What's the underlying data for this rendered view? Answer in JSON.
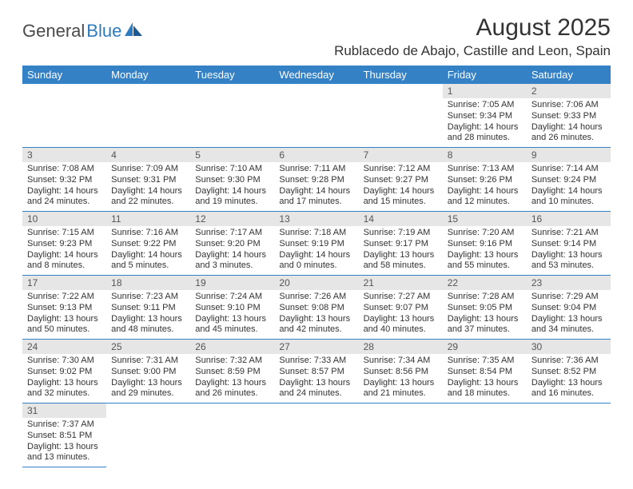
{
  "brand": {
    "part1": "General",
    "part2": "Blue"
  },
  "title": "August 2025",
  "location": "Rublacedo de Abajo, Castille and Leon, Spain",
  "colors": {
    "header_bg": "#3481c6",
    "header_text": "#ffffff",
    "daynum_bg": "#e6e6e6",
    "border": "#3481c6",
    "brand_gray": "#4a4a4a",
    "brand_blue": "#2f7bbf"
  },
  "weekdays": [
    "Sunday",
    "Monday",
    "Tuesday",
    "Wednesday",
    "Thursday",
    "Friday",
    "Saturday"
  ],
  "weeks": [
    [
      null,
      null,
      null,
      null,
      null,
      {
        "n": "1",
        "sunrise": "Sunrise: 7:05 AM",
        "sunset": "Sunset: 9:34 PM",
        "day1": "Daylight: 14 hours",
        "day2": "and 28 minutes."
      },
      {
        "n": "2",
        "sunrise": "Sunrise: 7:06 AM",
        "sunset": "Sunset: 9:33 PM",
        "day1": "Daylight: 14 hours",
        "day2": "and 26 minutes."
      }
    ],
    [
      {
        "n": "3",
        "sunrise": "Sunrise: 7:08 AM",
        "sunset": "Sunset: 9:32 PM",
        "day1": "Daylight: 14 hours",
        "day2": "and 24 minutes."
      },
      {
        "n": "4",
        "sunrise": "Sunrise: 7:09 AM",
        "sunset": "Sunset: 9:31 PM",
        "day1": "Daylight: 14 hours",
        "day2": "and 22 minutes."
      },
      {
        "n": "5",
        "sunrise": "Sunrise: 7:10 AM",
        "sunset": "Sunset: 9:30 PM",
        "day1": "Daylight: 14 hours",
        "day2": "and 19 minutes."
      },
      {
        "n": "6",
        "sunrise": "Sunrise: 7:11 AM",
        "sunset": "Sunset: 9:28 PM",
        "day1": "Daylight: 14 hours",
        "day2": "and 17 minutes."
      },
      {
        "n": "7",
        "sunrise": "Sunrise: 7:12 AM",
        "sunset": "Sunset: 9:27 PM",
        "day1": "Daylight: 14 hours",
        "day2": "and 15 minutes."
      },
      {
        "n": "8",
        "sunrise": "Sunrise: 7:13 AM",
        "sunset": "Sunset: 9:26 PM",
        "day1": "Daylight: 14 hours",
        "day2": "and 12 minutes."
      },
      {
        "n": "9",
        "sunrise": "Sunrise: 7:14 AM",
        "sunset": "Sunset: 9:24 PM",
        "day1": "Daylight: 14 hours",
        "day2": "and 10 minutes."
      }
    ],
    [
      {
        "n": "10",
        "sunrise": "Sunrise: 7:15 AM",
        "sunset": "Sunset: 9:23 PM",
        "day1": "Daylight: 14 hours",
        "day2": "and 8 minutes."
      },
      {
        "n": "11",
        "sunrise": "Sunrise: 7:16 AM",
        "sunset": "Sunset: 9:22 PM",
        "day1": "Daylight: 14 hours",
        "day2": "and 5 minutes."
      },
      {
        "n": "12",
        "sunrise": "Sunrise: 7:17 AM",
        "sunset": "Sunset: 9:20 PM",
        "day1": "Daylight: 14 hours",
        "day2": "and 3 minutes."
      },
      {
        "n": "13",
        "sunrise": "Sunrise: 7:18 AM",
        "sunset": "Sunset: 9:19 PM",
        "day1": "Daylight: 14 hours",
        "day2": "and 0 minutes."
      },
      {
        "n": "14",
        "sunrise": "Sunrise: 7:19 AM",
        "sunset": "Sunset: 9:17 PM",
        "day1": "Daylight: 13 hours",
        "day2": "and 58 minutes."
      },
      {
        "n": "15",
        "sunrise": "Sunrise: 7:20 AM",
        "sunset": "Sunset: 9:16 PM",
        "day1": "Daylight: 13 hours",
        "day2": "and 55 minutes."
      },
      {
        "n": "16",
        "sunrise": "Sunrise: 7:21 AM",
        "sunset": "Sunset: 9:14 PM",
        "day1": "Daylight: 13 hours",
        "day2": "and 53 minutes."
      }
    ],
    [
      {
        "n": "17",
        "sunrise": "Sunrise: 7:22 AM",
        "sunset": "Sunset: 9:13 PM",
        "day1": "Daylight: 13 hours",
        "day2": "and 50 minutes."
      },
      {
        "n": "18",
        "sunrise": "Sunrise: 7:23 AM",
        "sunset": "Sunset: 9:11 PM",
        "day1": "Daylight: 13 hours",
        "day2": "and 48 minutes."
      },
      {
        "n": "19",
        "sunrise": "Sunrise: 7:24 AM",
        "sunset": "Sunset: 9:10 PM",
        "day1": "Daylight: 13 hours",
        "day2": "and 45 minutes."
      },
      {
        "n": "20",
        "sunrise": "Sunrise: 7:26 AM",
        "sunset": "Sunset: 9:08 PM",
        "day1": "Daylight: 13 hours",
        "day2": "and 42 minutes."
      },
      {
        "n": "21",
        "sunrise": "Sunrise: 7:27 AM",
        "sunset": "Sunset: 9:07 PM",
        "day1": "Daylight: 13 hours",
        "day2": "and 40 minutes."
      },
      {
        "n": "22",
        "sunrise": "Sunrise: 7:28 AM",
        "sunset": "Sunset: 9:05 PM",
        "day1": "Daylight: 13 hours",
        "day2": "and 37 minutes."
      },
      {
        "n": "23",
        "sunrise": "Sunrise: 7:29 AM",
        "sunset": "Sunset: 9:04 PM",
        "day1": "Daylight: 13 hours",
        "day2": "and 34 minutes."
      }
    ],
    [
      {
        "n": "24",
        "sunrise": "Sunrise: 7:30 AM",
        "sunset": "Sunset: 9:02 PM",
        "day1": "Daylight: 13 hours",
        "day2": "and 32 minutes."
      },
      {
        "n": "25",
        "sunrise": "Sunrise: 7:31 AM",
        "sunset": "Sunset: 9:00 PM",
        "day1": "Daylight: 13 hours",
        "day2": "and 29 minutes."
      },
      {
        "n": "26",
        "sunrise": "Sunrise: 7:32 AM",
        "sunset": "Sunset: 8:59 PM",
        "day1": "Daylight: 13 hours",
        "day2": "and 26 minutes."
      },
      {
        "n": "27",
        "sunrise": "Sunrise: 7:33 AM",
        "sunset": "Sunset: 8:57 PM",
        "day1": "Daylight: 13 hours",
        "day2": "and 24 minutes."
      },
      {
        "n": "28",
        "sunrise": "Sunrise: 7:34 AM",
        "sunset": "Sunset: 8:56 PM",
        "day1": "Daylight: 13 hours",
        "day2": "and 21 minutes."
      },
      {
        "n": "29",
        "sunrise": "Sunrise: 7:35 AM",
        "sunset": "Sunset: 8:54 PM",
        "day1": "Daylight: 13 hours",
        "day2": "and 18 minutes."
      },
      {
        "n": "30",
        "sunrise": "Sunrise: 7:36 AM",
        "sunset": "Sunset: 8:52 PM",
        "day1": "Daylight: 13 hours",
        "day2": "and 16 minutes."
      }
    ],
    [
      {
        "n": "31",
        "sunrise": "Sunrise: 7:37 AM",
        "sunset": "Sunset: 8:51 PM",
        "day1": "Daylight: 13 hours",
        "day2": "and 13 minutes."
      },
      null,
      null,
      null,
      null,
      null,
      null
    ]
  ]
}
